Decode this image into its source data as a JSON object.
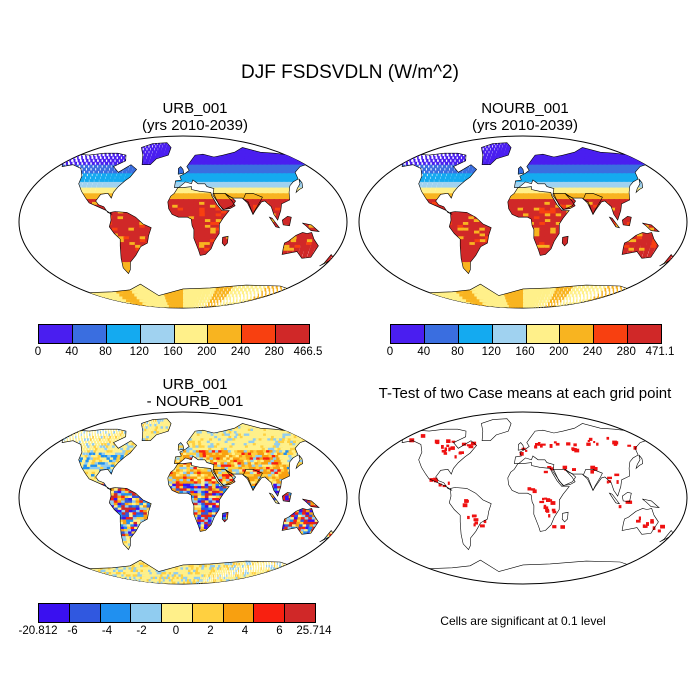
{
  "figure": {
    "title": "DJF FSDSVDLN (W/m^2)"
  },
  "panels": {
    "urb": {
      "title_line1": "URB_001",
      "title_line2": "(yrs 2010-2039)",
      "colorbar": {
        "labels": [
          "0",
          "40",
          "80",
          "120",
          "160",
          "200",
          "240",
          "280",
          "466.5"
        ],
        "colors": [
          "#4a1ef0",
          "#3a6ee0",
          "#14aaf0",
          "#a0d2f0",
          "#fff08a",
          "#f8b420",
          "#f84010",
          "#d02828"
        ]
      }
    },
    "nourb": {
      "title_line1": "NOURB_001",
      "title_line2": "(yrs 2010-2039)",
      "colorbar": {
        "labels": [
          "0",
          "40",
          "80",
          "120",
          "160",
          "200",
          "240",
          "280",
          "471.1"
        ],
        "colors": [
          "#4a1ef0",
          "#3a6ee0",
          "#14aaf0",
          "#a0d2f0",
          "#fff08a",
          "#f8b420",
          "#f84010",
          "#d02828"
        ]
      }
    },
    "diff": {
      "title_line1": "URB_001",
      "title_line2": "- NOURB_001",
      "colorbar": {
        "labels": [
          "-20.812",
          "-6",
          "-4",
          "-2",
          "0",
          "2",
          "4",
          "6",
          "25.714"
        ],
        "colors": [
          "#3a10f0",
          "#3058e0",
          "#2090f0",
          "#90ccf0",
          "#fff08a",
          "#ffd040",
          "#f8a010",
          "#f82010",
          "#d02828"
        ]
      }
    },
    "ttest": {
      "title": "T-Test of two Case means at each grid point",
      "note": "Cells are significant at 0.1 level",
      "significant_color": "#ee1111"
    }
  }
}
